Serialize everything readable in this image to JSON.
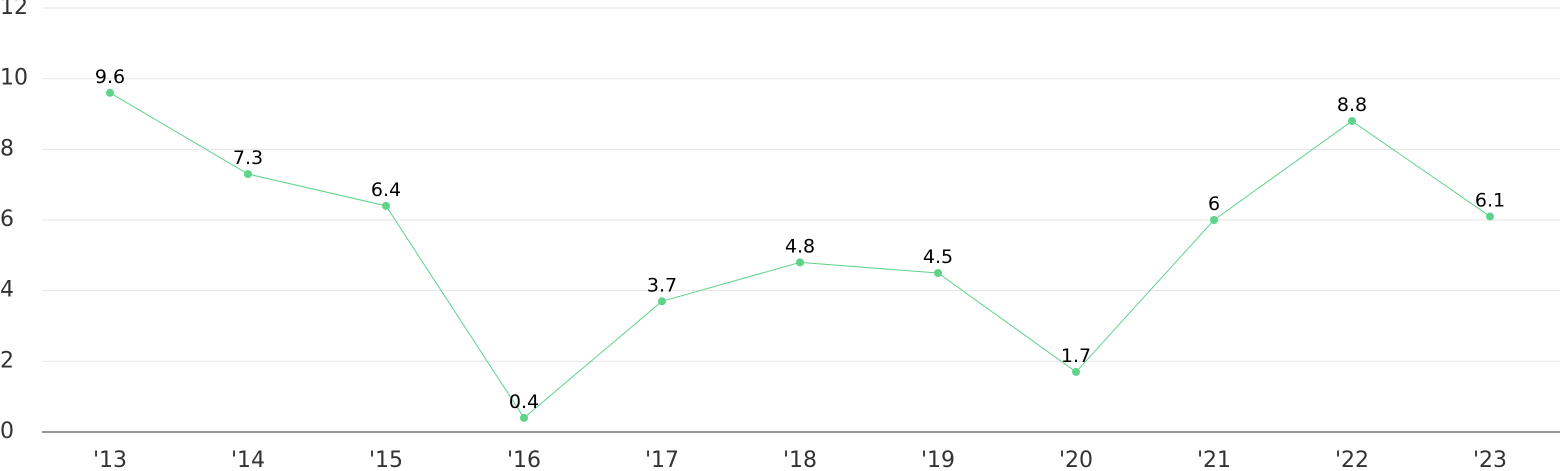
{
  "chart_data": {
    "type": "line",
    "categories": [
      "'13",
      "'14",
      "'15",
      "'16",
      "'17",
      "'18",
      "'19",
      "'20",
      "'21",
      "'22",
      "'23"
    ],
    "series": [
      {
        "values": [
          9.6,
          7.3,
          6.4,
          0.4,
          3.7,
          4.8,
          4.5,
          1.7,
          6,
          8.8,
          6.1
        ]
      }
    ],
    "data_labels": [
      "9.6",
      "7.3",
      "6.4",
      "0.4",
      "3.7",
      "4.8",
      "4.5",
      "1.7",
      "6",
      "8.8",
      "6.1"
    ],
    "yticks": [
      "0",
      "2",
      "4",
      "6",
      "8",
      "10",
      "12"
    ],
    "ylim": [
      0,
      12
    ],
    "grid": true,
    "legend": "none",
    "colors": {
      "series": "#5fd38a",
      "grid": "#e6e6e6",
      "axis": "#333333"
    }
  }
}
